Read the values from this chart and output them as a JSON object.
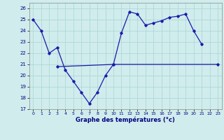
{
  "line1_x": [
    0,
    1,
    2,
    3,
    4,
    5,
    6,
    7,
    8,
    9,
    10,
    11,
    12,
    13,
    14,
    15,
    16,
    17,
    18,
    19,
    20,
    21
  ],
  "line1_y": [
    25.0,
    24.0,
    22.0,
    22.5,
    20.5,
    19.5,
    18.5,
    17.5,
    18.5,
    20.0,
    21.0,
    23.8,
    25.7,
    25.5,
    24.5,
    24.7,
    24.9,
    25.2,
    25.3,
    25.5,
    24.0,
    22.8
  ],
  "line2_x": [
    3,
    10,
    23
  ],
  "line2_y": [
    20.8,
    21.0,
    21.0
  ],
  "line_color": "#1a1aaa",
  "bg_color": "#d0ecec",
  "grid_color": "#a8d4d4",
  "xlim": [
    -0.5,
    23.5
  ],
  "ylim": [
    17,
    26.5
  ],
  "yticks": [
    17,
    18,
    19,
    20,
    21,
    22,
    23,
    24,
    25,
    26
  ],
  "xticks": [
    0,
    1,
    2,
    3,
    4,
    5,
    6,
    7,
    8,
    9,
    10,
    11,
    12,
    13,
    14,
    15,
    16,
    17,
    18,
    19,
    20,
    21,
    22,
    23
  ],
  "xlabel": "Graphe des températures (°c)"
}
